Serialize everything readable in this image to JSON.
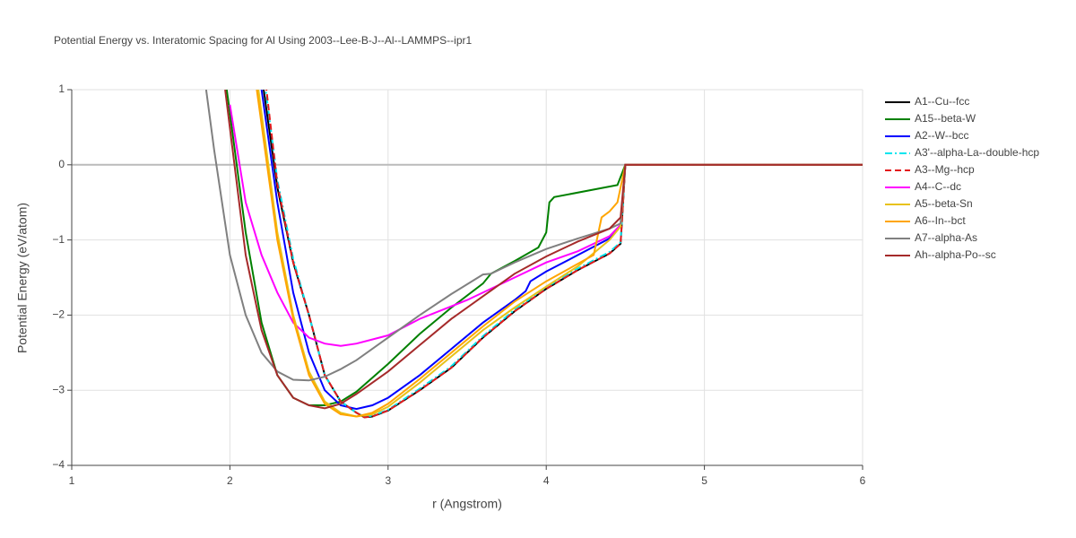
{
  "chart_data": {
    "type": "line",
    "title": "Potential Energy vs. Interatomic Spacing for Al Using 2003--Lee-B-J--Al--LAMMPS--ipr1",
    "x_label": "r (Angstrom)",
    "y_label": "Potential Energy (eV/atom)",
    "xlim": [
      1,
      6
    ],
    "ylim": [
      -4,
      1
    ],
    "xticks": [
      1,
      2,
      3,
      4,
      5,
      6
    ],
    "yticks": [
      {
        "value": -4,
        "label": "−4"
      },
      {
        "value": -3,
        "label": "−3"
      },
      {
        "value": -2,
        "label": "−2"
      },
      {
        "value": -1,
        "label": "−1"
      },
      0,
      1
    ],
    "grid": true,
    "legend": "right",
    "series": [
      {
        "name": "A1--Cu--fcc",
        "color": "#000000",
        "dash": "solid",
        "x": [
          2.2,
          2.3,
          2.4,
          2.5,
          2.6,
          2.7,
          2.8,
          2.85,
          2.9,
          3.0,
          3.2,
          3.4,
          3.6,
          3.8,
          4.0,
          4.2,
          4.4,
          4.47,
          4.5,
          6
        ],
        "values": [
          1.2,
          -0.3,
          -1.3,
          -2.0,
          -2.8,
          -3.15,
          -3.3,
          -3.36,
          -3.35,
          -3.27,
          -3.0,
          -2.7,
          -2.3,
          -1.95,
          -1.65,
          -1.4,
          -1.18,
          -1.05,
          0,
          0
        ]
      },
      {
        "name": "A15--beta-W",
        "color": "#008000",
        "dash": "solid",
        "x": [
          1.98,
          2.1,
          2.2,
          2.3,
          2.4,
          2.5,
          2.6,
          2.7,
          2.8,
          3.0,
          3.2,
          3.4,
          3.6,
          3.65,
          3.8,
          3.95,
          4.0,
          4.02,
          4.05,
          4.45,
          4.5,
          6
        ],
        "values": [
          1,
          -0.9,
          -2.1,
          -2.8,
          -3.1,
          -3.2,
          -3.2,
          -3.15,
          -3.02,
          -2.65,
          -2.25,
          -1.9,
          -1.58,
          -1.45,
          -1.28,
          -1.1,
          -0.9,
          -0.5,
          -0.43,
          -0.27,
          0,
          0
        ]
      },
      {
        "name": "A2--W--bcc",
        "color": "#0000ff",
        "dash": "solid",
        "x": [
          2.2,
          2.3,
          2.4,
          2.5,
          2.6,
          2.7,
          2.8,
          2.9,
          3.0,
          3.2,
          3.4,
          3.6,
          3.8,
          3.87,
          3.9,
          4.0,
          4.2,
          4.4,
          4.47,
          4.5,
          6
        ],
        "values": [
          1,
          -0.5,
          -1.7,
          -2.5,
          -3.0,
          -3.2,
          -3.25,
          -3.2,
          -3.1,
          -2.8,
          -2.45,
          -2.1,
          -1.8,
          -1.68,
          -1.55,
          -1.42,
          -1.2,
          -0.98,
          -0.8,
          0,
          0
        ]
      },
      {
        "name": "A3'--alpha-La--double-hcp",
        "color": "#00e5ee",
        "dash": "dashdot",
        "x": [
          2.22,
          2.3,
          2.4,
          2.5,
          2.6,
          2.7,
          2.8,
          2.85,
          2.9,
          3.0,
          3.2,
          3.4,
          3.6,
          3.8,
          4.0,
          4.2,
          4.4,
          4.47,
          4.5,
          6
        ],
        "values": [
          1.1,
          -0.2,
          -1.25,
          -2.0,
          -2.8,
          -3.15,
          -3.3,
          -3.35,
          -3.34,
          -3.26,
          -2.98,
          -2.68,
          -2.28,
          -1.93,
          -1.63,
          -1.38,
          -1.16,
          -1.03,
          0,
          0
        ]
      },
      {
        "name": "A3--Mg--hcp",
        "color": "#e31a1c",
        "dash": "dash",
        "x": [
          2.22,
          2.3,
          2.4,
          2.5,
          2.6,
          2.7,
          2.8,
          2.85,
          2.9,
          3.0,
          3.2,
          3.4,
          3.6,
          3.8,
          4.0,
          4.2,
          4.4,
          4.47,
          4.5,
          6
        ],
        "values": [
          1.2,
          -0.25,
          -1.3,
          -2.0,
          -2.8,
          -3.15,
          -3.3,
          -3.36,
          -3.35,
          -3.27,
          -3.0,
          -2.7,
          -2.3,
          -1.95,
          -1.65,
          -1.4,
          -1.18,
          -1.05,
          0,
          0
        ]
      },
      {
        "name": "A4--C--dc",
        "color": "#ff00ff",
        "dash": "solid",
        "x": [
          2.0,
          2.1,
          2.2,
          2.3,
          2.4,
          2.5,
          2.6,
          2.7,
          2.8,
          3.0,
          3.2,
          3.5,
          3.8,
          4.0,
          4.2,
          4.4,
          4.47,
          4.5,
          6
        ],
        "values": [
          0.8,
          -0.5,
          -1.2,
          -1.7,
          -2.1,
          -2.3,
          -2.38,
          -2.41,
          -2.38,
          -2.27,
          -2.05,
          -1.8,
          -1.5,
          -1.3,
          -1.15,
          -0.95,
          -0.8,
          0,
          0
        ]
      },
      {
        "name": "A5--beta-Sn",
        "color": "#e8c21a",
        "dash": "solid",
        "x": [
          2.18,
          2.3,
          2.4,
          2.5,
          2.6,
          2.7,
          2.8,
          2.9,
          3.0,
          3.2,
          3.4,
          3.6,
          3.8,
          4.0,
          4.2,
          4.4,
          4.47,
          4.5,
          6
        ],
        "values": [
          1,
          -0.9,
          -2.0,
          -2.75,
          -3.15,
          -3.3,
          -3.35,
          -3.32,
          -3.22,
          -2.9,
          -2.55,
          -2.2,
          -1.9,
          -1.62,
          -1.35,
          -1.0,
          -0.82,
          0,
          0
        ]
      },
      {
        "name": "A6--In--bct",
        "color": "#ffa500",
        "dash": "solid",
        "x": [
          2.17,
          2.3,
          2.4,
          2.5,
          2.6,
          2.7,
          2.8,
          2.9,
          3.0,
          3.2,
          3.4,
          3.6,
          3.8,
          4.0,
          4.3,
          4.35,
          4.4,
          4.45,
          4.5,
          6
        ],
        "values": [
          1,
          -1.0,
          -2.05,
          -2.8,
          -3.18,
          -3.32,
          -3.35,
          -3.3,
          -3.18,
          -2.85,
          -2.5,
          -2.15,
          -1.82,
          -1.55,
          -1.2,
          -0.7,
          -0.62,
          -0.5,
          0,
          0
        ]
      },
      {
        "name": "A7--alpha-As",
        "color": "#808080",
        "dash": "solid",
        "x": [
          1.85,
          1.9,
          2.0,
          2.1,
          2.2,
          2.3,
          2.4,
          2.5,
          2.6,
          2.7,
          2.8,
          3.0,
          3.2,
          3.4,
          3.6,
          3.65,
          3.8,
          4.0,
          4.2,
          4.4,
          4.47,
          4.5,
          6
        ],
        "values": [
          1,
          0.2,
          -1.2,
          -2.0,
          -2.5,
          -2.75,
          -2.86,
          -2.87,
          -2.82,
          -2.72,
          -2.6,
          -2.3,
          -2.0,
          -1.72,
          -1.46,
          -1.45,
          -1.3,
          -1.12,
          -0.98,
          -0.85,
          -0.78,
          0,
          0
        ]
      },
      {
        "name": "Ah--alpha-Po--sc",
        "color": "#a52a2a",
        "dash": "solid",
        "x": [
          1.97,
          2.1,
          2.2,
          2.3,
          2.4,
          2.5,
          2.6,
          2.7,
          2.8,
          3.0,
          3.2,
          3.4,
          3.6,
          3.8,
          4.0,
          4.2,
          4.4,
          4.47,
          4.5,
          6
        ],
        "values": [
          1,
          -1.2,
          -2.2,
          -2.8,
          -3.1,
          -3.2,
          -3.24,
          -3.18,
          -3.05,
          -2.75,
          -2.4,
          -2.05,
          -1.75,
          -1.45,
          -1.22,
          -1.02,
          -0.85,
          -0.7,
          0,
          0
        ]
      }
    ]
  }
}
